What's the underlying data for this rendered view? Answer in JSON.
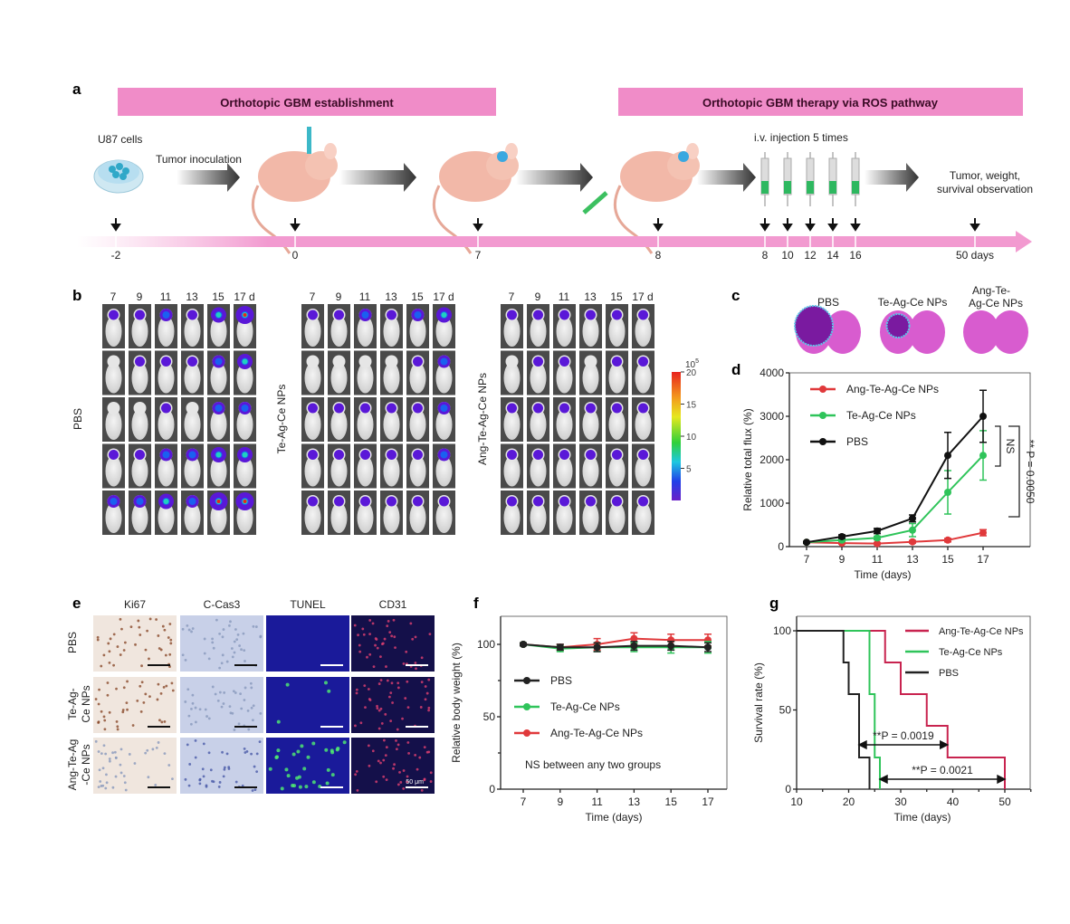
{
  "panel_labels": {
    "a": "a",
    "b": "b",
    "c": "c",
    "d": "d",
    "e": "e",
    "f": "f",
    "g": "g"
  },
  "panel_a": {
    "banner_establishment": "Orthotopic GBM establishment",
    "banner_therapy": "Orthotopic GBM therapy via ROS pathway",
    "banner_color": "#f08cc8",
    "u87": "U87 cells",
    "inoculation": "Tumor inoculation",
    "injection": "i.v. injection 5 times",
    "observation_line1": "Tumor, weight,",
    "observation_line2": "survival observation",
    "timeline_ticks": [
      "-2",
      "0",
      "7",
      "8",
      "8",
      "10",
      "12",
      "14",
      "16",
      "50 days"
    ]
  },
  "panel_b": {
    "days": [
      "7",
      "9",
      "11",
      "13",
      "15",
      "17 d"
    ],
    "groups": [
      "PBS",
      "Te-Ag-Ce NPs",
      "Ang-Te-Ag-Ce NPs"
    ],
    "colorbar": {
      "exponent_base": "10",
      "exponent": "5",
      "ticks": [
        "20",
        "15",
        "10",
        "5"
      ]
    }
  },
  "panel_c": {
    "labels": [
      "PBS",
      "Te-Ag-Ce NPs",
      "Ang-Te-",
      "Ag-Ce NPs"
    ]
  },
  "panel_e": {
    "columns": [
      "Ki67",
      "C-Cas3",
      "TUNEL",
      "CD31"
    ],
    "rows": [
      [
        "PBS",
        ""
      ],
      [
        "Te-Ag-",
        "Ce NPs"
      ],
      [
        "Ang-Te-Ag",
        "-Ce NPs"
      ]
    ],
    "scale_bar": "50 μm"
  },
  "chart_data": [
    {
      "panel": "d",
      "type": "line",
      "xlabel": "Time (days)",
      "ylabel": "Relative total flux (%)",
      "x": [
        7,
        9,
        11,
        13,
        15,
        17
      ],
      "xlim": [
        7,
        17
      ],
      "ylim": [
        0,
        4000
      ],
      "xticks": [
        "7",
        "9",
        "11",
        "13",
        "15",
        "17"
      ],
      "yticks": [
        "0",
        "1000",
        "2000",
        "3000",
        "4000"
      ],
      "legend": "top-left",
      "series": [
        {
          "name": "Ang-Te-Ag-Ce NPs",
          "color": "#e0393b",
          "y": [
            100,
            80,
            70,
            110,
            150,
            320
          ],
          "err": [
            20,
            20,
            20,
            30,
            40,
            70
          ]
        },
        {
          "name": "Te-Ag-Ce NPs",
          "color": "#2fc45a",
          "y": [
            100,
            150,
            200,
            380,
            1250,
            2100
          ],
          "err": [
            20,
            30,
            40,
            150,
            500,
            570
          ]
        },
        {
          "name": "PBS",
          "color": "#111111",
          "y": [
            100,
            230,
            360,
            650,
            2100,
            3000
          ],
          "err": [
            20,
            40,
            60,
            80,
            530,
            600
          ]
        }
      ],
      "annotations": [
        "NS",
        "** P = 0.0050"
      ]
    },
    {
      "panel": "f",
      "type": "line",
      "xlabel": "Time (days)",
      "ylabel": "Relative body weight  (%)",
      "x": [
        7,
        9,
        11,
        13,
        15,
        17
      ],
      "xlim": [
        7,
        17
      ],
      "ylim": [
        0,
        100
      ],
      "xticks": [
        "7",
        "9",
        "11",
        "13",
        "15",
        "17"
      ],
      "yticks": [
        "0",
        "50",
        "100"
      ],
      "legend": "center-left",
      "series": [
        {
          "name": "PBS",
          "color": "#222222",
          "y": [
            100,
            98,
            98,
            99,
            99,
            98
          ],
          "err": [
            1,
            2,
            3,
            3,
            3,
            3
          ]
        },
        {
          "name": "Te-Ag-Ce NPs",
          "color": "#2fc45a",
          "y": [
            100,
            97,
            98,
            98,
            98,
            98
          ],
          "err": [
            1,
            2,
            3,
            3,
            4,
            4
          ]
        },
        {
          "name": "Ang-Te-Ag-Ce NPs",
          "color": "#e0393b",
          "y": [
            100,
            98,
            100,
            104,
            103,
            103
          ],
          "err": [
            1,
            2,
            4,
            4,
            4,
            4
          ]
        }
      ],
      "annotations": [
        "NS between any two groups"
      ]
    },
    {
      "panel": "g",
      "type": "line",
      "xlabel": "Time (days)",
      "ylabel": "Survival rate (%)",
      "xlim": [
        10,
        55
      ],
      "ylim": [
        0,
        100
      ],
      "xticks": [
        "10",
        "20",
        "30",
        "40",
        "50"
      ],
      "yticks": [
        "0",
        "50",
        "100"
      ],
      "legend": "top-right",
      "series": [
        {
          "name": "Ang-Te-Ag-Ce NPs",
          "color": "#c8234f",
          "steps": [
            [
              10,
              100
            ],
            [
              27,
              80
            ],
            [
              30,
              60
            ],
            [
              35,
              40
            ],
            [
              39,
              20
            ],
            [
              50,
              0
            ]
          ]
        },
        {
          "name": "Te-Ag-Ce NPs",
          "color": "#2fc45a",
          "steps": [
            [
              10,
              100
            ],
            [
              24,
              60
            ],
            [
              25,
              20
            ],
            [
              26,
              0
            ]
          ]
        },
        {
          "name": "PBS",
          "color": "#222222",
          "steps": [
            [
              10,
              100
            ],
            [
              19,
              80
            ],
            [
              20,
              60
            ],
            [
              22,
              20
            ],
            [
              24,
              0
            ]
          ]
        }
      ],
      "annotations": [
        "**P = 0.0019",
        "**P = 0.0021"
      ]
    }
  ]
}
